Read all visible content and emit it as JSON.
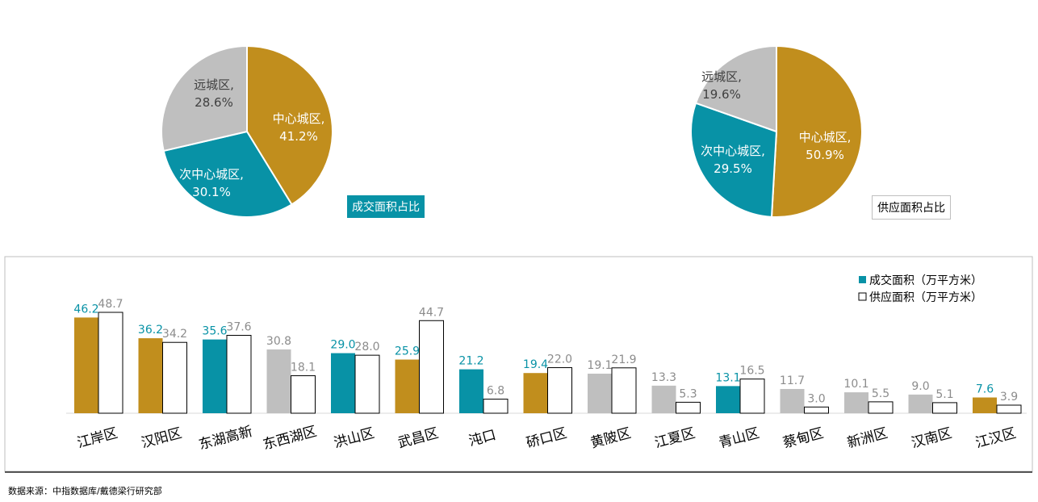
{
  "colors": {
    "gold": "#C18E1D",
    "teal": "#0892A6",
    "gray": "#BFBFBF",
    "supply_bar": "#FFFFFF",
    "bar_stroke": "#000000",
    "teal_text": "#0892A6",
    "gray_text": "#8C8C8C"
  },
  "chart_data": [
    {
      "type": "pie",
      "title": "成交面积占比",
      "slices": [
        {
          "label": "中心城区,",
          "pct": "41.2%",
          "value": 41.2,
          "color": "#C18E1D"
        },
        {
          "label": "次中心城区,",
          "pct": "30.1%",
          "value": 30.1,
          "color": "#0892A6"
        },
        {
          "label": "远城区,",
          "pct": "28.6%",
          "value": 28.6,
          "color": "#BFBFBF"
        }
      ]
    },
    {
      "type": "pie",
      "title": "供应面积占比",
      "slices": [
        {
          "label": "中心城区,",
          "pct": "50.9%",
          "value": 50.9,
          "color": "#C18E1D"
        },
        {
          "label": "次中心城区,",
          "pct": "29.5%",
          "value": 29.5,
          "color": "#0892A6"
        },
        {
          "label": "远城区,",
          "pct": "19.6%",
          "value": 19.6,
          "color": "#BFBFBF"
        }
      ]
    },
    {
      "type": "bar",
      "legend": {
        "placement": "top-right",
        "entries": [
          "成交面积（万平方米）",
          "供应面积（万平方米）"
        ]
      },
      "categories": [
        "江岸区",
        "汉阳区",
        "东湖高新",
        "东西湖区",
        "洪山区",
        "武昌区",
        "沌口",
        "硚口区",
        "黄陂区",
        "江夏区",
        "青山区",
        "蔡甸区",
        "新洲区",
        "汉南区",
        "江汉区"
      ],
      "series": [
        {
          "name": "成交面积（万平方米）",
          "values": [
            46.2,
            36.2,
            35.6,
            30.8,
            29.0,
            25.9,
            21.2,
            19.4,
            19.1,
            13.3,
            13.1,
            11.7,
            10.1,
            9.0,
            7.6
          ],
          "labels": [
            "46.2",
            "36.2",
            "35.6",
            "30.8",
            "29.0",
            "25.9",
            "21.2",
            "19.4",
            "19.1",
            "13.3",
            "13.1",
            "11.7",
            "10.1",
            "9.0",
            "7.6"
          ]
        },
        {
          "name": "供应面积（万平方米）",
          "values": [
            48.7,
            34.2,
            37.6,
            18.1,
            28.0,
            44.7,
            6.8,
            22.0,
            21.9,
            5.3,
            16.5,
            3.0,
            5.5,
            5.1,
            3.9
          ],
          "labels": [
            "48.7",
            "34.2",
            "37.6",
            "18.1",
            "28.0",
            "44.7",
            "6.8",
            "22.0",
            "21.9",
            "5.3",
            "16.5",
            "3.0",
            "5.5",
            "5.1",
            "3.9"
          ]
        }
      ],
      "deal_colors": [
        "gold",
        "gold",
        "teal",
        "gray",
        "teal",
        "gold",
        "teal",
        "gold",
        "gray",
        "gray",
        "teal",
        "gray",
        "gray",
        "gray",
        "gold"
      ],
      "ylim": [
        0,
        50
      ]
    }
  ],
  "source": "数据来源：中指数据库/戴德梁行研究部"
}
